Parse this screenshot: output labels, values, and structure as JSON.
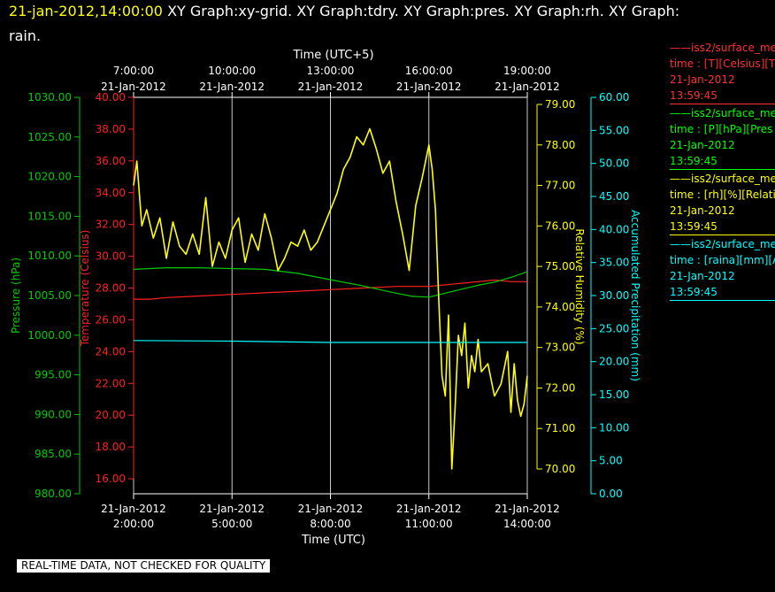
{
  "header": {
    "timestamp": "21-jan-2012,14:00:00",
    "rest_line1": "XY Graph:xy-grid.  XY Graph:tdry.  XY Graph:pres.  XY Graph:rh.  XY Graph:",
    "line2": "rain."
  },
  "footer": {
    "quality_note": "REAL-TIME DATA, NOT CHECKED FOR QUALITY"
  },
  "legend": [
    {
      "name": "——iss2/surface_me",
      "variable": "time : [T][Celsius][T",
      "date": "21-Jan-2012",
      "time": "13:59:45",
      "color": "#ff3030"
    },
    {
      "name": "——iss2/surface_me",
      "variable": "time : [P][hPa][Pres",
      "date": "21-Jan-2012",
      "time": "13:59:45",
      "color": "#00ff00"
    },
    {
      "name": "——iss2/surface_me",
      "variable": "time : [rh][%][Relati",
      "date": "21-Jan-2012",
      "time": "13:59:45",
      "color": "#ffff00"
    },
    {
      "name": "——iss2/surface_me",
      "variable": "time : [raina][mm][A",
      "date": "21-Jan-2012",
      "time": "13:59:45",
      "color": "#00ffff"
    }
  ],
  "chart_data": {
    "type": "line",
    "grid": true,
    "x_axis_bottom": {
      "label": "Time (UTC)",
      "range": [
        "2012-01-21 02:00",
        "2012-01-21 14:00"
      ],
      "ticks": [
        {
          "date": "21-Jan-2012",
          "time": "2:00:00"
        },
        {
          "date": "21-Jan-2012",
          "time": "5:00:00"
        },
        {
          "date": "21-Jan-2012",
          "time": "8:00:00"
        },
        {
          "date": "21-Jan-2012",
          "time": "11:00:00"
        },
        {
          "date": "21-Jan-2012",
          "time": "14:00:00"
        }
      ]
    },
    "x_axis_top": {
      "label": "Time (UTC+5)",
      "ticks": [
        {
          "date": "21-Jan-2012",
          "time": "7:00:00"
        },
        {
          "date": "21-Jan-2012",
          "time": "10:00:00"
        },
        {
          "date": "21-Jan-2012",
          "time": "13:00:00"
        },
        {
          "date": "21-Jan-2012",
          "time": "16:00:00"
        },
        {
          "date": "21-Jan-2012",
          "time": "19:00:00"
        }
      ]
    },
    "y_axes": [
      {
        "id": "pres",
        "label": "Pressure (hPa)",
        "color": "#00cc00",
        "range": [
          980,
          1030
        ],
        "ticks": [
          "980.00",
          "985.00",
          "990.00",
          "995.00",
          "1000.00",
          "1005.00",
          "1010.00",
          "1015.00",
          "1020.00",
          "1025.00",
          "1030.00"
        ]
      },
      {
        "id": "tdry",
        "label": "Temperature (Celsius)",
        "color": "#ff2020",
        "range": [
          15,
          40
        ],
        "ticks": [
          "16.00",
          "18.00",
          "20.00",
          "22.00",
          "24.00",
          "26.00",
          "28.00",
          "30.00",
          "32.00",
          "34.00",
          "36.00",
          "38.00",
          "40.00"
        ]
      },
      {
        "id": "rh",
        "label": "Relative Humidity (%)",
        "color": "#ffff00",
        "range": [
          69.6,
          79.4
        ],
        "ticks": [
          "70.00",
          "71.00",
          "72.00",
          "73.00",
          "74.00",
          "75.00",
          "76.00",
          "77.00",
          "78.00",
          "79.00"
        ]
      },
      {
        "id": "rain",
        "label": "Accumulated Precipitation (mm)",
        "color": "#00ffff",
        "range": [
          0,
          60
        ],
        "ticks": [
          "0.00",
          "5.00",
          "10.00",
          "15.00",
          "20.00",
          "25.00",
          "30.00",
          "35.00",
          "40.00",
          "45.00",
          "50.00",
          "55.00",
          "60.00"
        ]
      }
    ],
    "series": [
      {
        "axis": "tdry",
        "color": "#ff2020",
        "x_hours": [
          2,
          2.5,
          3,
          4,
          5,
          6,
          7,
          8,
          9,
          10,
          11,
          12,
          12.5,
          13,
          13.5,
          14
        ],
        "y": [
          27.3,
          27.3,
          27.4,
          27.5,
          27.6,
          27.7,
          27.8,
          27.9,
          28.0,
          28.1,
          28.1,
          28.3,
          28.4,
          28.5,
          28.4,
          28.4
        ]
      },
      {
        "axis": "pres",
        "color": "#00cc00",
        "x_hours": [
          2,
          3,
          4,
          5,
          6,
          7,
          8,
          9,
          10,
          10.5,
          11,
          11.5,
          12,
          12.5,
          13,
          13.5,
          14
        ],
        "y": [
          1008.3,
          1008.5,
          1008.5,
          1008.4,
          1008.3,
          1007.8,
          1007.0,
          1006.2,
          1005.3,
          1004.9,
          1004.8,
          1005.3,
          1005.8,
          1006.3,
          1006.7,
          1007.3,
          1008.0
        ]
      },
      {
        "axis": "rh",
        "color": "#ffff00",
        "x_hours": [
          2,
          2.1,
          2.25,
          2.4,
          2.6,
          2.8,
          3.0,
          3.2,
          3.4,
          3.6,
          3.8,
          4.0,
          4.2,
          4.4,
          4.6,
          4.8,
          5.0,
          5.2,
          5.4,
          5.6,
          5.8,
          6.0,
          6.2,
          6.4,
          6.6,
          6.8,
          7.0,
          7.2,
          7.4,
          7.6,
          7.8,
          8.0,
          8.2,
          8.4,
          8.6,
          8.8,
          9.0,
          9.2,
          9.4,
          9.6,
          9.8,
          10.0,
          10.2,
          10.4,
          10.6,
          10.8,
          11.0,
          11.1,
          11.2,
          11.3,
          11.4,
          11.5,
          11.6,
          11.7,
          11.8,
          11.9,
          12.0,
          12.1,
          12.2,
          12.3,
          12.4,
          12.5,
          12.6,
          12.8,
          13.0,
          13.2,
          13.4,
          13.5,
          13.6,
          13.7,
          13.8,
          13.9,
          14.0
        ],
        "y": [
          77.0,
          77.6,
          76.0,
          76.4,
          75.7,
          76.2,
          75.2,
          76.1,
          75.5,
          75.3,
          75.8,
          75.3,
          76.7,
          75.0,
          75.6,
          75.2,
          75.9,
          76.2,
          75.1,
          75.8,
          75.4,
          76.3,
          75.7,
          74.9,
          75.2,
          75.6,
          75.5,
          75.9,
          75.4,
          75.6,
          76.0,
          76.4,
          76.8,
          77.4,
          77.7,
          78.2,
          78.0,
          78.4,
          77.9,
          77.3,
          77.6,
          76.6,
          75.8,
          74.9,
          76.5,
          77.2,
          78.0,
          77.4,
          76.4,
          74.2,
          72.3,
          71.8,
          73.8,
          70.0,
          71.5,
          73.3,
          72.8,
          73.6,
          72.0,
          72.8,
          72.4,
          73.2,
          72.4,
          72.6,
          71.8,
          72.1,
          72.9,
          71.4,
          72.6,
          71.7,
          71.3,
          71.6,
          72.3
        ]
      },
      {
        "axis": "rain",
        "color": "#00ffff",
        "x_hours": [
          2,
          5,
          8,
          11,
          14
        ],
        "y": [
          23.2,
          23.1,
          22.9,
          22.9,
          22.9
        ]
      }
    ]
  }
}
